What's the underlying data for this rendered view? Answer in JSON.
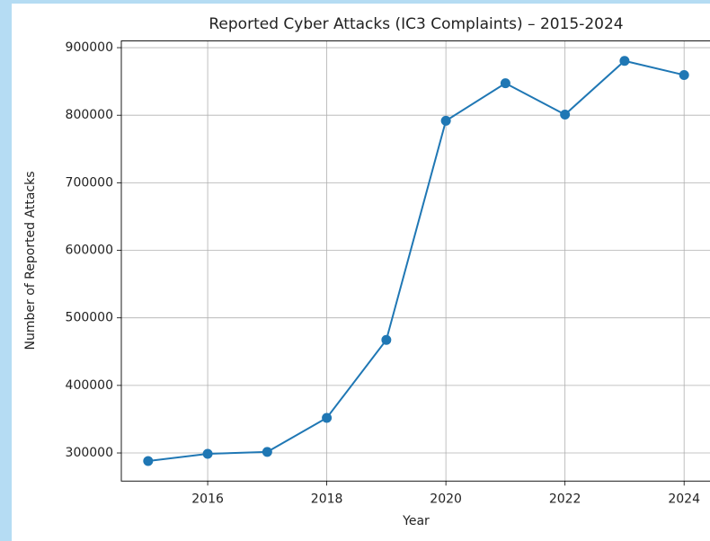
{
  "chart_data": {
    "type": "line",
    "title": "Reported Cyber Attacks (IC3 Complaints) – 2015-2024",
    "x_label": "Year",
    "y_label": "Number of Reported Attacks",
    "x": [
      2015,
      2016,
      2017,
      2018,
      2019,
      2020,
      2021,
      2022,
      2023,
      2024
    ],
    "series": [
      {
        "name": "Reported Attacks",
        "color": "#1f77b4",
        "values": [
          288012,
          298728,
          301580,
          351937,
          467361,
          791790,
          847376,
          800944,
          880418,
          859532
        ]
      }
    ],
    "xlim": [
      2014.55,
      2024.45
    ],
    "xticks": [
      2016,
      2018,
      2020,
      2022,
      2024
    ],
    "ylim": [
      258392,
      910038
    ],
    "yticks": [
      300000,
      400000,
      500000,
      600000,
      700000,
      800000,
      900000
    ],
    "grid": true
  }
}
